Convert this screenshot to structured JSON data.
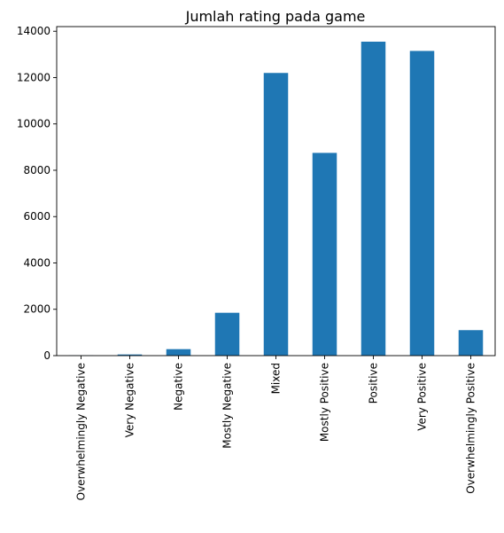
{
  "chart_data": {
    "type": "bar",
    "title": "Jumlah rating pada game",
    "xlabel": "",
    "ylabel": "",
    "categories": [
      "Overwhelmingly Negative",
      "Very Negative",
      "Negative",
      "Mostly Negative",
      "Mixed",
      "Mostly Positive",
      "Positive",
      "Very Positive",
      "Overwhelmingly Positive"
    ],
    "values": [
      10,
      50,
      280,
      1850,
      12200,
      8750,
      13550,
      13150,
      1100
    ],
    "ylim": [
      0,
      14200
    ],
    "yticks": [
      0,
      2000,
      4000,
      6000,
      8000,
      10000,
      12000,
      14000
    ],
    "bar_color": "#1f77b4",
    "grid": false,
    "legend": "none"
  }
}
